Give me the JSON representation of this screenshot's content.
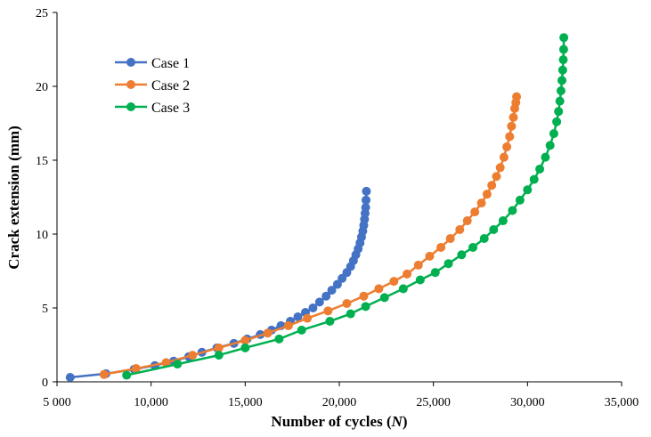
{
  "chart_data": {
    "type": "line",
    "xlabel": "Number of cycles (",
    "xlabel_var": "N",
    "xlabel_end": ")",
    "ylabel": "Crack extension (mm)",
    "xlim": [
      5000,
      35000
    ],
    "ylim": [
      0,
      25
    ],
    "xticks": [
      {
        "value": 5000,
        "label": "5 000"
      },
      {
        "value": 10000,
        "label": "10,000"
      },
      {
        "value": 15000,
        "label": "15,000"
      },
      {
        "value": 20000,
        "label": "20,000"
      },
      {
        "value": 25000,
        "label": "25,000"
      },
      {
        "value": 30000,
        "label": "30,000"
      },
      {
        "value": 35000,
        "label": "35,000"
      }
    ],
    "yticks": [
      {
        "value": 0,
        "label": "0"
      },
      {
        "value": 5,
        "label": "5"
      },
      {
        "value": 10,
        "label": "10"
      },
      {
        "value": 15,
        "label": "15"
      },
      {
        "value": 20,
        "label": "20"
      },
      {
        "value": 25,
        "label": "25"
      }
    ],
    "legend_position": "top-left",
    "series": [
      {
        "name": "Case 1",
        "color": "#4472C4",
        "x": [
          5700,
          7600,
          9100,
          10200,
          11200,
          12000,
          12700,
          13500,
          14400,
          15100,
          15800,
          16400,
          16900,
          17400,
          17800,
          18200,
          18600,
          18950,
          19300,
          19600,
          19900,
          20150,
          20400,
          20600,
          20750,
          20880,
          21000,
          21100,
          21180,
          21250,
          21300,
          21340,
          21370,
          21400,
          21420,
          21440
        ],
        "y": [
          0.3,
          0.55,
          0.85,
          1.1,
          1.4,
          1.7,
          2.0,
          2.3,
          2.6,
          2.9,
          3.2,
          3.5,
          3.8,
          4.1,
          4.4,
          4.7,
          5.0,
          5.4,
          5.8,
          6.2,
          6.6,
          7.0,
          7.4,
          7.8,
          8.2,
          8.6,
          9.0,
          9.4,
          9.8,
          10.2,
          10.6,
          11.0,
          11.4,
          11.8,
          12.3,
          12.9
        ]
      },
      {
        "name": "Case 2",
        "color": "#ED7D31",
        "x": [
          7500,
          9200,
          10800,
          12200,
          13600,
          15000,
          16200,
          17300,
          18300,
          19400,
          20400,
          21300,
          22100,
          22900,
          23600,
          24200,
          24800,
          25400,
          25900,
          26400,
          26800,
          27200,
          27550,
          27850,
          28100,
          28350,
          28550,
          28750,
          28900,
          29050,
          29150,
          29250,
          29320,
          29380,
          29420
        ],
        "y": [
          0.5,
          0.9,
          1.3,
          1.8,
          2.3,
          2.8,
          3.3,
          3.8,
          4.3,
          4.8,
          5.3,
          5.8,
          6.3,
          6.8,
          7.3,
          7.9,
          8.5,
          9.1,
          9.7,
          10.3,
          10.9,
          11.5,
          12.1,
          12.7,
          13.3,
          13.9,
          14.5,
          15.2,
          15.9,
          16.6,
          17.3,
          17.9,
          18.5,
          18.9,
          19.3
        ]
      },
      {
        "name": "Case 3",
        "color": "#00B050",
        "x": [
          8700,
          11400,
          13600,
          15000,
          16800,
          18000,
          19500,
          20600,
          21400,
          22400,
          23400,
          24300,
          25100,
          25800,
          26500,
          27100,
          27700,
          28200,
          28700,
          29200,
          29600,
          30000,
          30350,
          30650,
          30950,
          31200,
          31400,
          31550,
          31650,
          31720,
          31780,
          31830,
          31870,
          31900,
          31920,
          31930
        ],
        "y": [
          0.45,
          1.2,
          1.8,
          2.3,
          2.9,
          3.5,
          4.1,
          4.6,
          5.1,
          5.7,
          6.3,
          6.9,
          7.4,
          8.0,
          8.6,
          9.1,
          9.7,
          10.3,
          10.9,
          11.6,
          12.3,
          13.0,
          13.7,
          14.4,
          15.2,
          16.0,
          16.8,
          17.6,
          18.3,
          19.0,
          19.7,
          20.4,
          21.1,
          21.8,
          22.5,
          23.3
        ]
      }
    ]
  }
}
